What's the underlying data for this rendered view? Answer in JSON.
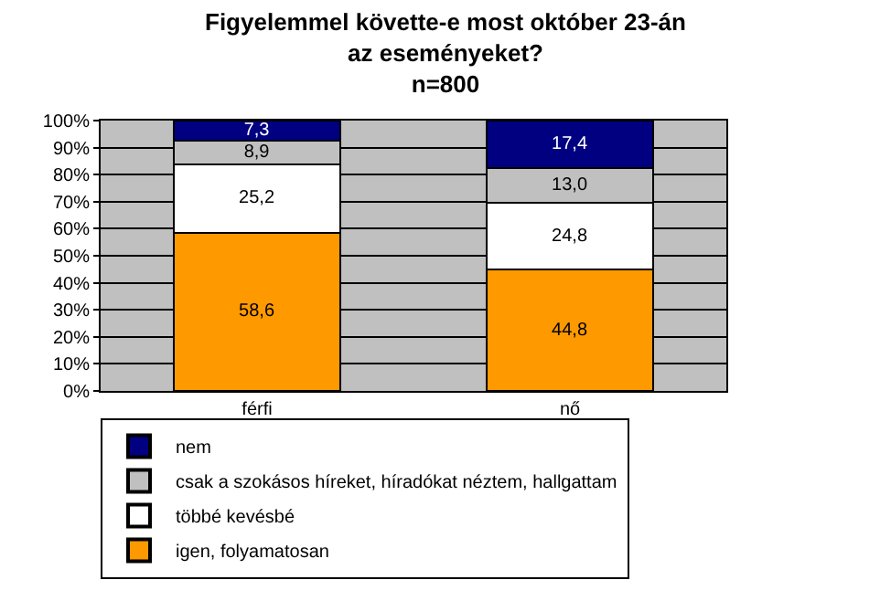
{
  "chart_data": {
    "type": "bar",
    "stacked": true,
    "title": "Figyelemmel követte-e most október 23-án az eseményeket?",
    "subtitle": "n=800",
    "categories": [
      "férfi",
      "nő"
    ],
    "series": [
      {
        "name": "igen, folyamatosan",
        "color": "#ff9900",
        "values": [
          58.6,
          44.8
        ],
        "value_labels": [
          "58,6",
          "44,8"
        ]
      },
      {
        "name": "többé kevésbé",
        "color": "#ffffff",
        "values": [
          25.2,
          24.8
        ],
        "value_labels": [
          "25,2",
          "24,8"
        ]
      },
      {
        "name": "csak a szokásos híreket, híradókat néztem, hallgattam",
        "color": "#c0c0c0",
        "values": [
          8.9,
          13.0
        ],
        "value_labels": [
          "8,9",
          "13,0"
        ]
      },
      {
        "name": "nem",
        "color": "#000080",
        "values": [
          7.3,
          17.4
        ],
        "value_labels": [
          "7,3",
          "17,4"
        ]
      }
    ],
    "ylim": [
      0,
      100
    ],
    "yticks": [
      {
        "value": 0,
        "label": "0%"
      },
      {
        "value": 10,
        "label": "10%"
      },
      {
        "value": 20,
        "label": "20%"
      },
      {
        "value": 30,
        "label": "30%"
      },
      {
        "value": 40,
        "label": "40%"
      },
      {
        "value": 50,
        "label": "50%"
      },
      {
        "value": 60,
        "label": "60%"
      },
      {
        "value": 70,
        "label": "70%"
      },
      {
        "value": 80,
        "label": "80%"
      },
      {
        "value": 90,
        "label": "90%"
      },
      {
        "value": 100,
        "label": "100%"
      }
    ],
    "grid": "y",
    "legend": "bottom left"
  }
}
